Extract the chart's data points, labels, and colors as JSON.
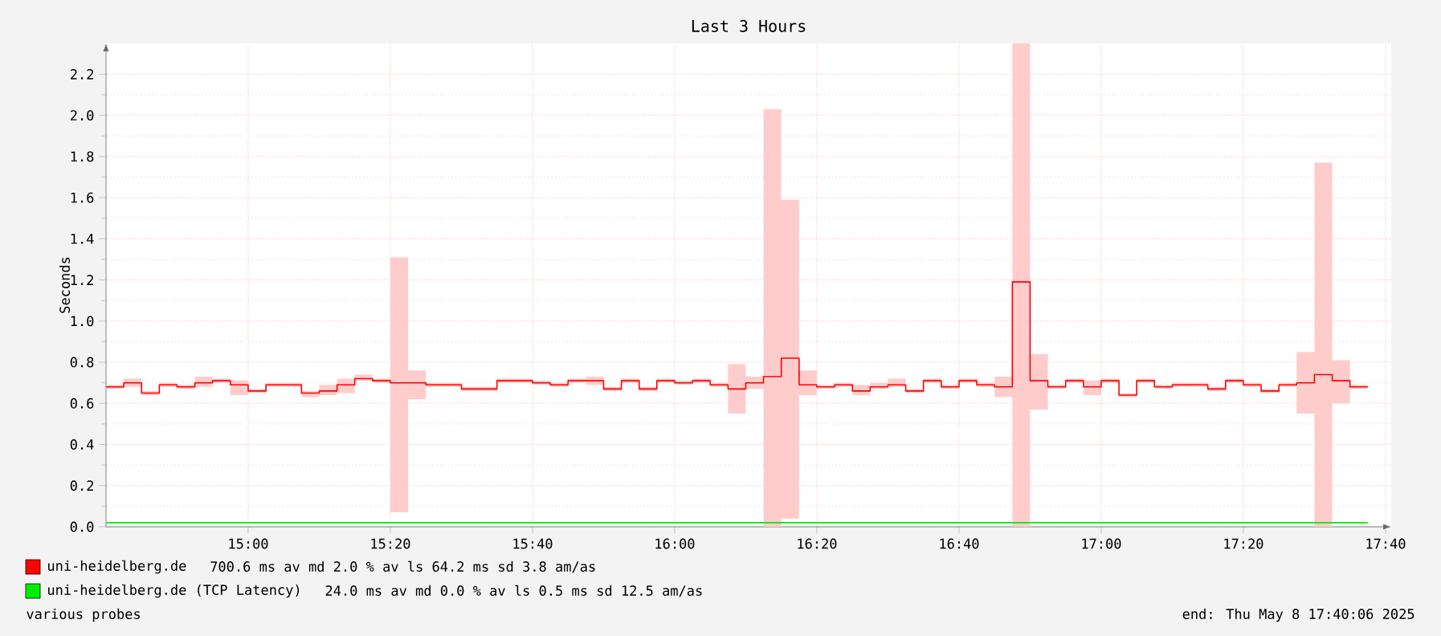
{
  "chart_data": {
    "type": "step",
    "title": "Last 3 Hours",
    "ylabel": "Seconds",
    "x": [
      14.6667,
      14.7083,
      14.75,
      14.7917,
      14.8333,
      14.875,
      14.9167,
      14.9583,
      15,
      15.0417,
      15.0833,
      15.125,
      15.1667,
      15.2083,
      15.25,
      15.2917,
      15.3333,
      15.375,
      15.4167,
      15.4583,
      15.5,
      15.5417,
      15.5833,
      15.625,
      15.6667,
      15.7083,
      15.75,
      15.7917,
      15.8333,
      15.875,
      15.9167,
      15.9583,
      16,
      16.0417,
      16.0833,
      16.125,
      16.1667,
      16.2083,
      16.25,
      16.2917,
      16.3333,
      16.375,
      16.4167,
      16.4583,
      16.5,
      16.5417,
      16.5833,
      16.625,
      16.6667,
      16.7083,
      16.75,
      16.7917,
      16.8333,
      16.875,
      16.9167,
      16.9583,
      17,
      17.0417,
      17.0833,
      17.125,
      17.1667,
      17.2083,
      17.25,
      17.2917,
      17.3333,
      17.375,
      17.4167,
      17.4583,
      17.5,
      17.5417,
      17.5833,
      17.625
    ],
    "series": [
      {
        "name": "uni-heidelberg.de",
        "color": "#ff0000",
        "values": [
          0.68,
          0.7,
          0.65,
          0.69,
          0.68,
          0.7,
          0.71,
          0.69,
          0.66,
          0.69,
          0.69,
          0.65,
          0.66,
          0.69,
          0.72,
          0.71,
          0.7,
          0.7,
          0.69,
          0.69,
          0.67,
          0.67,
          0.71,
          0.71,
          0.7,
          0.69,
          0.71,
          0.71,
          0.67,
          0.71,
          0.67,
          0.71,
          0.7,
          0.71,
          0.69,
          0.67,
          0.7,
          0.73,
          0.82,
          0.69,
          0.68,
          0.69,
          0.66,
          0.68,
          0.69,
          0.66,
          0.71,
          0.68,
          0.71,
          0.69,
          0.68,
          1.19,
          0.71,
          0.68,
          0.71,
          0.68,
          0.71,
          0.64,
          0.71,
          0.68,
          0.69,
          0.69,
          0.67,
          0.71,
          0.69,
          0.66,
          0.69,
          0.7,
          0.74,
          0.71,
          0.68,
          0.68
        ],
        "upper": [
          0.69,
          0.72,
          0.66,
          0.7,
          0.69,
          0.73,
          0.72,
          0.71,
          0.67,
          0.7,
          0.7,
          0.66,
          0.69,
          0.72,
          0.74,
          0.72,
          1.31,
          0.76,
          0.7,
          0.7,
          0.68,
          0.68,
          0.72,
          0.72,
          0.71,
          0.7,
          0.72,
          0.73,
          0.68,
          0.72,
          0.68,
          0.72,
          0.71,
          0.72,
          0.7,
          0.79,
          0.73,
          2.03,
          1.59,
          0.76,
          0.69,
          0.7,
          0.69,
          0.7,
          0.72,
          0.67,
          0.72,
          0.69,
          0.72,
          0.7,
          0.73,
          2.35,
          0.84,
          0.69,
          0.72,
          0.71,
          0.72,
          0.65,
          0.72,
          0.69,
          0.7,
          0.7,
          0.68,
          0.72,
          0.7,
          0.67,
          0.7,
          0.85,
          1.77,
          0.81,
          0.69,
          0.69
        ],
        "lower": [
          0.67,
          0.68,
          0.64,
          0.68,
          0.67,
          0.68,
          0.7,
          0.64,
          0.65,
          0.68,
          0.68,
          0.63,
          0.64,
          0.65,
          0.71,
          0.7,
          0.07,
          0.62,
          0.68,
          0.68,
          0.66,
          0.66,
          0.7,
          0.7,
          0.69,
          0.68,
          0.7,
          0.69,
          0.66,
          0.7,
          0.66,
          0.7,
          0.69,
          0.7,
          0.68,
          0.55,
          0.67,
          0.0,
          0.04,
          0.64,
          0.67,
          0.68,
          0.64,
          0.67,
          0.68,
          0.65,
          0.7,
          0.67,
          0.7,
          0.68,
          0.63,
          0.0,
          0.57,
          0.67,
          0.7,
          0.64,
          0.7,
          0.63,
          0.7,
          0.67,
          0.68,
          0.68,
          0.66,
          0.7,
          0.68,
          0.65,
          0.68,
          0.55,
          0.0,
          0.6,
          0.67,
          0.67
        ]
      },
      {
        "name": "uni-heidelberg.de (TCP Latency)",
        "color": "#00ee00",
        "x": [
          14.6667,
          17.625
        ],
        "values": [
          0.02,
          0.02
        ]
      }
    ],
    "xlim": [
      14.6667,
      17.68
    ],
    "xticks": [
      {
        "value": 15,
        "label": "15:00"
      },
      {
        "value": 15.3333,
        "label": "15:20"
      },
      {
        "value": 15.6667,
        "label": "15:40"
      },
      {
        "value": 16,
        "label": "16:00"
      },
      {
        "value": 16.3333,
        "label": "16:20"
      },
      {
        "value": 16.6667,
        "label": "16:40"
      },
      {
        "value": 17,
        "label": "17:00"
      },
      {
        "value": 17.3333,
        "label": "17:20"
      },
      {
        "value": 17.6667,
        "label": "17:40"
      }
    ],
    "ylim": [
      0,
      2.35
    ],
    "yticks": [
      {
        "value": 0,
        "label": "0.0"
      },
      {
        "value": 0.2,
        "label": "0.2"
      },
      {
        "value": 0.4,
        "label": "0.4"
      },
      {
        "value": 0.6,
        "label": "0.6"
      },
      {
        "value": 0.8,
        "label": "0.8"
      },
      {
        "value": 1,
        "label": "1.0"
      },
      {
        "value": 1.2,
        "label": "1.2"
      },
      {
        "value": 1.4,
        "label": "1.4"
      },
      {
        "value": 1.6,
        "label": "1.6"
      },
      {
        "value": 1.8,
        "label": "1.8"
      },
      {
        "value": 2,
        "label": "2.0"
      },
      {
        "value": 2.2,
        "label": "2.2"
      }
    ],
    "grid": true,
    "legend": "bottom",
    "annotations": [
      "700.6 ms av md     2.0 % av ls   64.2 ms sd    3.8   am/as",
      "24.0 ms av md     0.0 % av ls    0.5 ms sd   12.5   am/as",
      "various probes",
      "end: Thu May  8 17:40:06 2025"
    ]
  }
}
